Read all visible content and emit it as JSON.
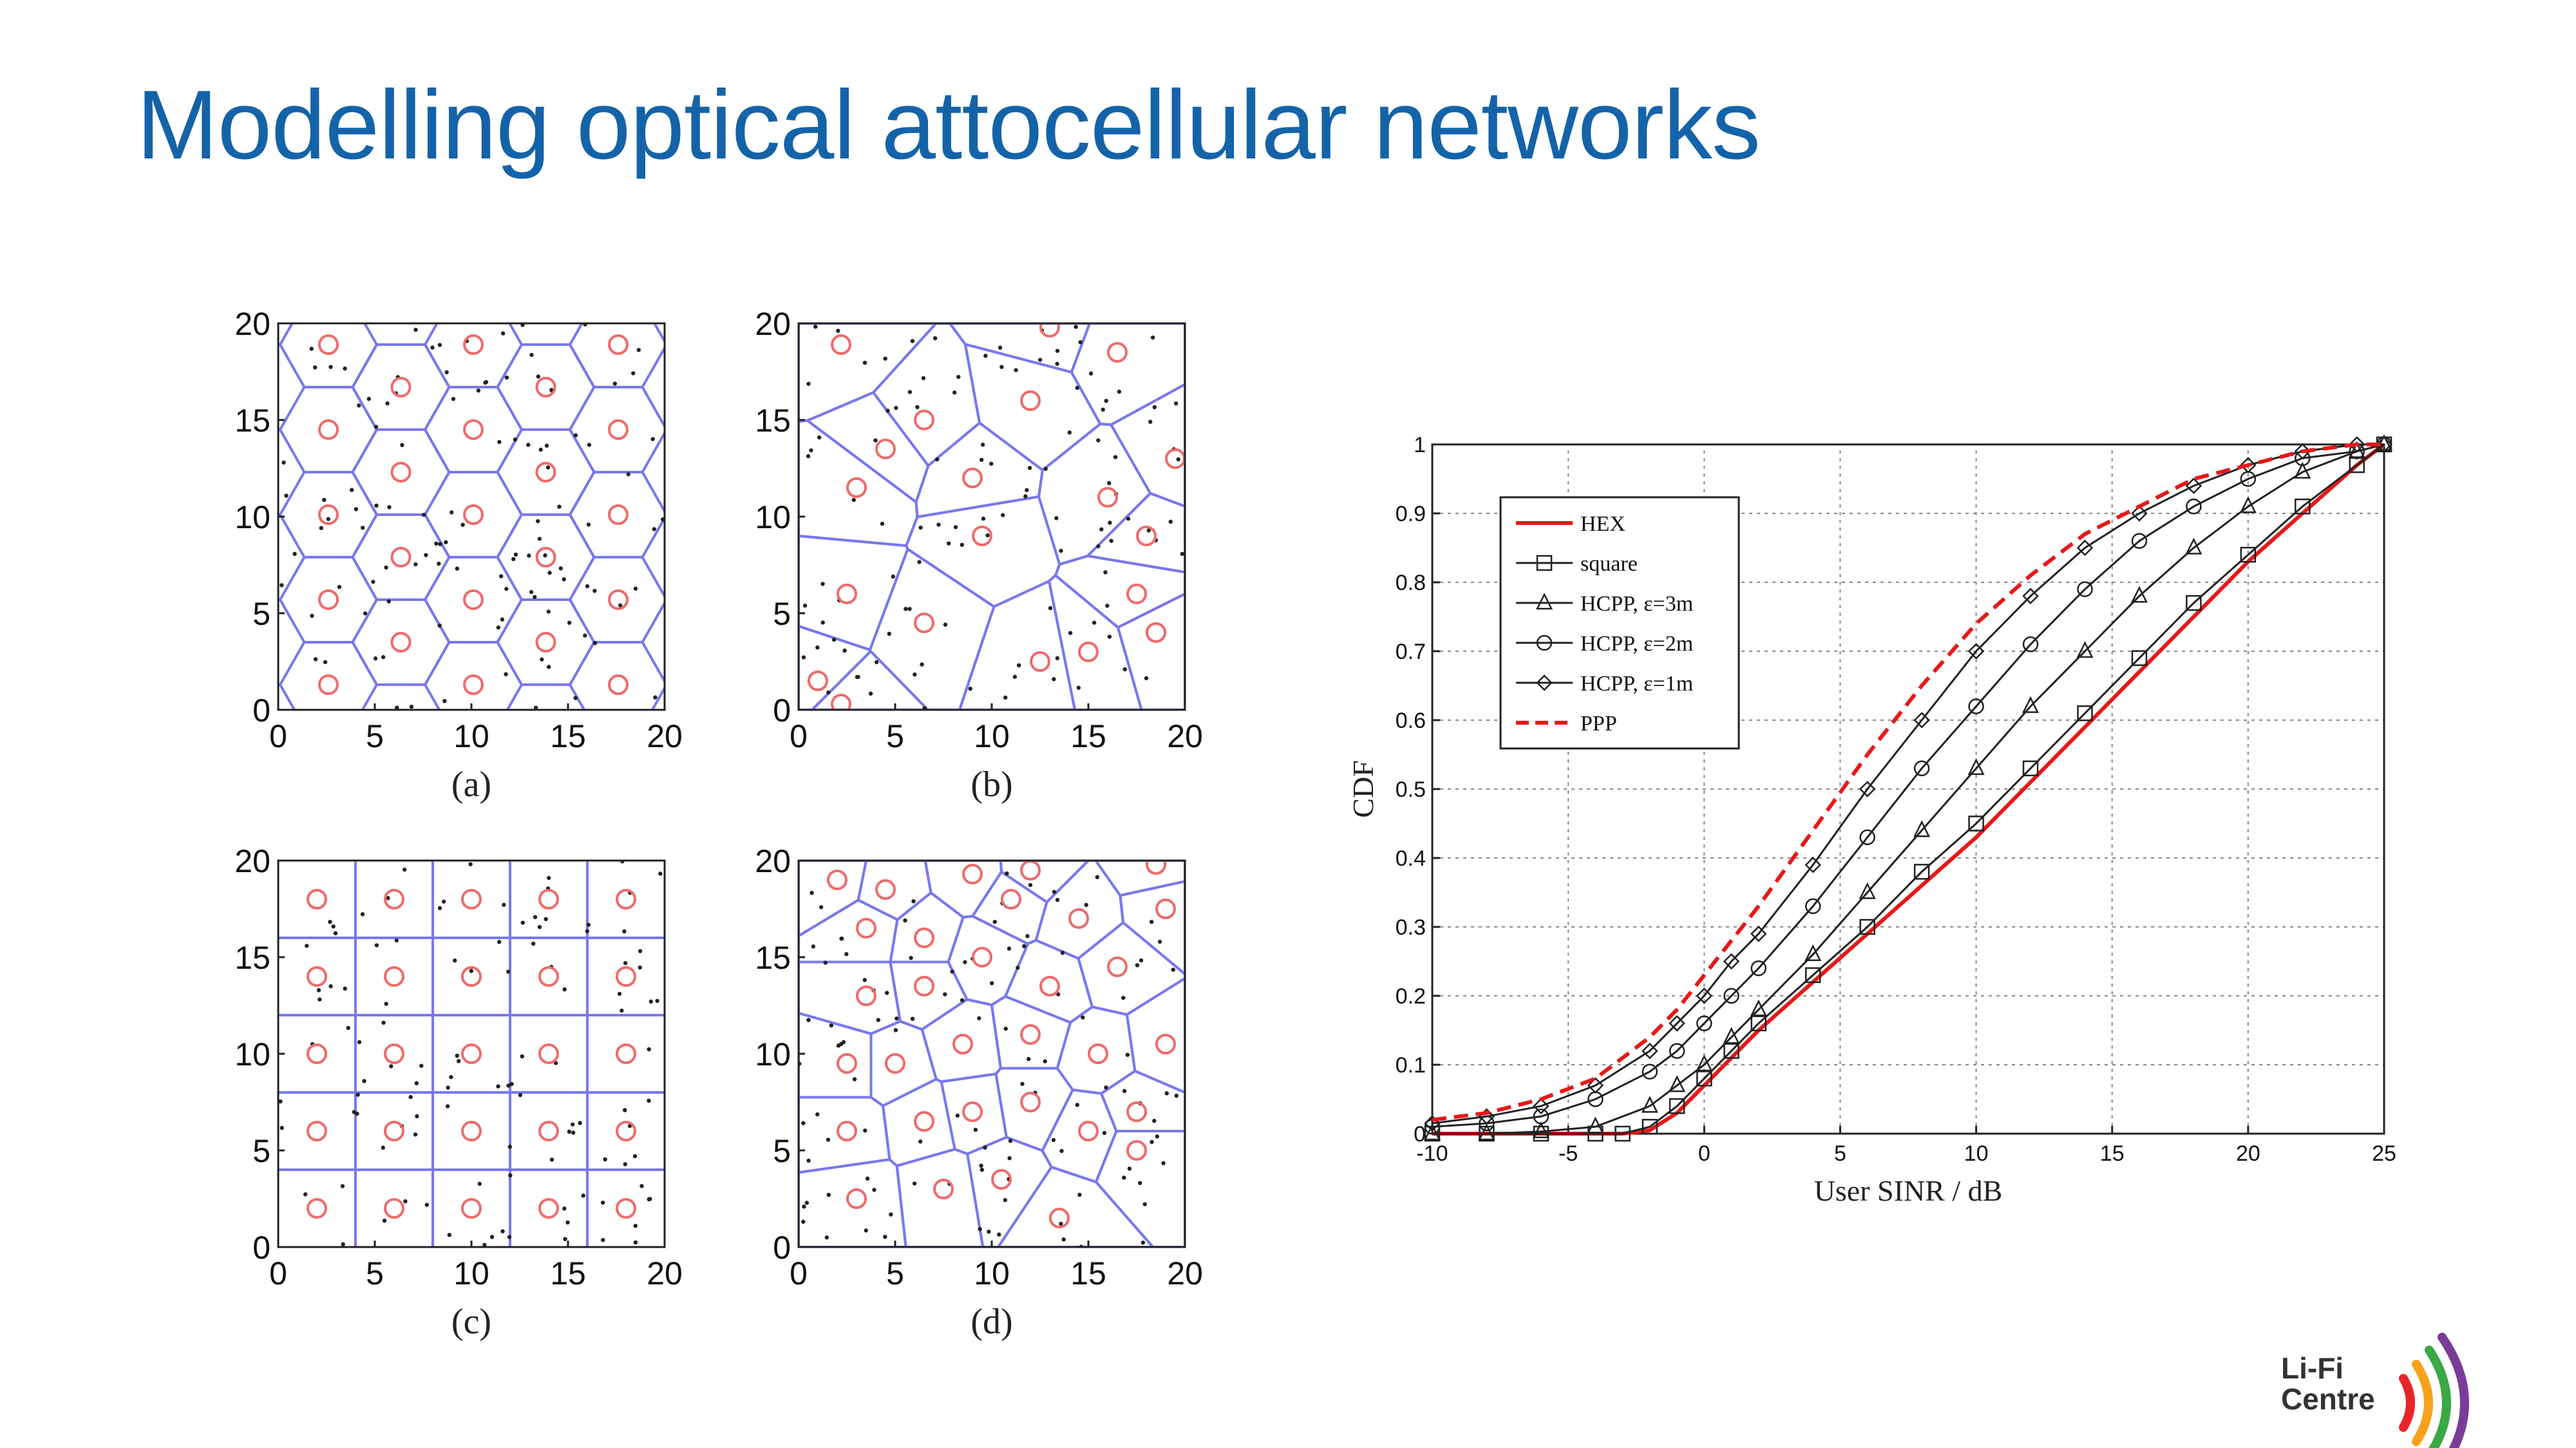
{
  "slide": {
    "title": "Modelling optical attocellular networks",
    "logo_line1": "Li-Fi",
    "logo_line2": "Centre"
  },
  "colors": {
    "title": "#1463a8",
    "cell_edges": "#7878ee",
    "access_points": "#f06a6a",
    "users": "#222222",
    "hex_curve": "#e81818",
    "ppp_curve": "#e81818",
    "marker_curves": "#222222"
  },
  "icons": [
    "lifi-waves-icon"
  ],
  "subfigures": [
    {
      "label": "(a)",
      "pattern": "hexagonal",
      "xticks": [
        "0",
        "5",
        "10",
        "15",
        "20"
      ],
      "yticks": [
        "0",
        "5",
        "10",
        "15",
        "20"
      ]
    },
    {
      "label": "(b)",
      "pattern": "voronoi-ppp",
      "xticks": [
        "0",
        "5",
        "10",
        "15",
        "20"
      ],
      "yticks": [
        "0",
        "5",
        "10",
        "15",
        "20"
      ]
    },
    {
      "label": "(c)",
      "pattern": "square",
      "xticks": [
        "0",
        "5",
        "10",
        "15",
        "20"
      ],
      "yticks": [
        "0",
        "5",
        "10",
        "15",
        "20"
      ]
    },
    {
      "label": "(d)",
      "pattern": "voronoi-hcpp",
      "xticks": [
        "0",
        "5",
        "10",
        "15",
        "20"
      ],
      "yticks": [
        "0",
        "5",
        "10",
        "15",
        "20"
      ]
    }
  ],
  "chart_data": {
    "type": "line",
    "xlabel": "User SINR / dB",
    "ylabel": "CDF",
    "xlim": [
      -10,
      25
    ],
    "ylim": [
      0,
      1
    ],
    "xticks": [
      -10,
      -5,
      0,
      5,
      10,
      15,
      20,
      25
    ],
    "yticks": [
      0,
      0.1,
      0.2,
      0.3,
      0.4,
      0.5,
      0.6,
      0.7,
      0.8,
      0.9,
      1
    ],
    "ytick_labels": [
      "0",
      "0.1",
      "0.2",
      "0.3",
      "0.4",
      "0.5",
      "0.6",
      "0.7",
      "0.8",
      "0.9",
      "1"
    ],
    "grid": true,
    "legend_position": "top-left",
    "series": [
      {
        "name": "HEX",
        "style": "solid-red",
        "marker": "none",
        "x": [
          -10,
          -8,
          -6,
          -4,
          -3,
          -2,
          -1,
          0,
          1,
          2,
          4,
          6,
          8,
          10,
          12,
          14,
          16,
          18,
          20,
          22,
          24,
          25
        ],
        "y": [
          0,
          0,
          0,
          0,
          0,
          0.005,
          0.03,
          0.07,
          0.11,
          0.15,
          0.22,
          0.29,
          0.36,
          0.43,
          0.51,
          0.59,
          0.67,
          0.75,
          0.83,
          0.9,
          0.97,
          1
        ]
      },
      {
        "name": "square",
        "style": "solid-black",
        "marker": "square",
        "x": [
          -10,
          -8,
          -6,
          -4,
          -3,
          -2,
          -1,
          0,
          1,
          2,
          4,
          6,
          8,
          10,
          12,
          14,
          16,
          18,
          20,
          22,
          24,
          25
        ],
        "y": [
          0,
          0,
          0,
          0,
          0,
          0.01,
          0.04,
          0.08,
          0.12,
          0.16,
          0.23,
          0.3,
          0.38,
          0.45,
          0.53,
          0.61,
          0.69,
          0.77,
          0.84,
          0.91,
          0.97,
          1
        ]
      },
      {
        "name": "HCPP, ε=3m",
        "style": "solid-black",
        "marker": "triangle",
        "x": [
          -10,
          -8,
          -6,
          -4,
          -2,
          -1,
          0,
          1,
          2,
          4,
          6,
          8,
          10,
          12,
          14,
          16,
          18,
          20,
          22,
          24,
          25
        ],
        "y": [
          0,
          0,
          0.003,
          0.01,
          0.04,
          0.07,
          0.1,
          0.14,
          0.18,
          0.26,
          0.35,
          0.44,
          0.53,
          0.62,
          0.7,
          0.78,
          0.85,
          0.91,
          0.96,
          0.99,
          1
        ]
      },
      {
        "name": "HCPP, ε=2m",
        "style": "solid-black",
        "marker": "circle",
        "x": [
          -10,
          -8,
          -6,
          -4,
          -2,
          -1,
          0,
          1,
          2,
          4,
          6,
          8,
          10,
          12,
          14,
          16,
          18,
          20,
          22,
          24,
          25
        ],
        "y": [
          0.01,
          0.015,
          0.025,
          0.05,
          0.09,
          0.12,
          0.16,
          0.2,
          0.24,
          0.33,
          0.43,
          0.53,
          0.62,
          0.71,
          0.79,
          0.86,
          0.91,
          0.95,
          0.98,
          0.99,
          1
        ]
      },
      {
        "name": "HCPP, ε=1m",
        "style": "solid-black",
        "marker": "diamond",
        "x": [
          -10,
          -8,
          -6,
          -4,
          -2,
          -1,
          0,
          1,
          2,
          4,
          6,
          8,
          10,
          12,
          14,
          16,
          18,
          20,
          22,
          24,
          25
        ],
        "y": [
          0.015,
          0.025,
          0.04,
          0.07,
          0.12,
          0.16,
          0.2,
          0.25,
          0.29,
          0.39,
          0.5,
          0.6,
          0.7,
          0.78,
          0.85,
          0.9,
          0.94,
          0.97,
          0.99,
          1,
          1
        ]
      },
      {
        "name": "PPP",
        "style": "dashed-red",
        "marker": "none",
        "x": [
          -10,
          -8,
          -6,
          -4,
          -2,
          -1,
          0,
          1,
          2,
          4,
          6,
          8,
          10,
          12,
          14,
          16,
          18,
          20,
          22,
          24,
          25
        ],
        "y": [
          0.02,
          0.03,
          0.05,
          0.08,
          0.14,
          0.18,
          0.23,
          0.28,
          0.33,
          0.44,
          0.55,
          0.65,
          0.74,
          0.81,
          0.87,
          0.91,
          0.95,
          0.97,
          0.99,
          1,
          1
        ]
      }
    ]
  }
}
